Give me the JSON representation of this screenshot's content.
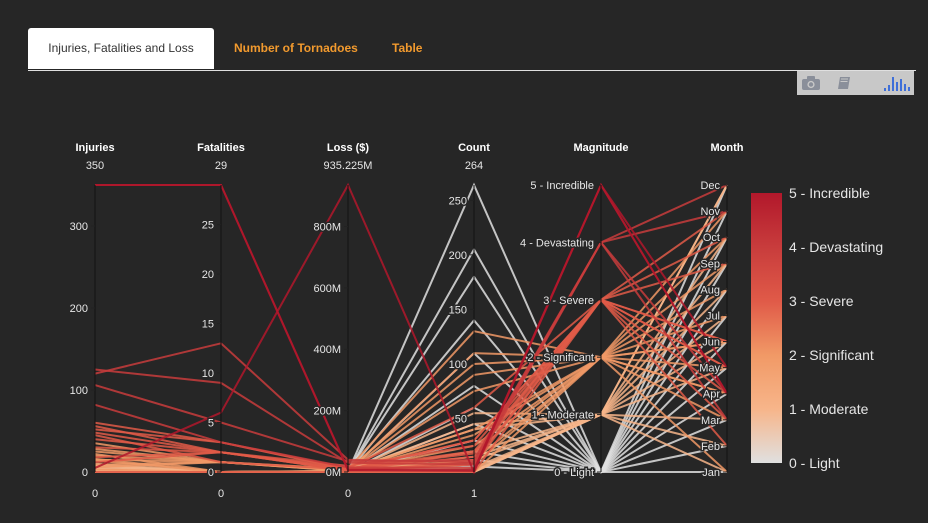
{
  "tabs": [
    {
      "label": "Injuries, Fatalities and Loss"
    },
    {
      "label": "Number of Tornadoes"
    },
    {
      "label": "Table"
    }
  ],
  "modebar": {
    "icons": [
      "camera-icon",
      "book-icon",
      "bar-chart-logo-icon"
    ]
  },
  "chart_data": {
    "type": "parallel_coordinates",
    "colorscale": [
      "#e0e0e0",
      "#f7b58a",
      "#f19966",
      "#e05a48",
      "#c83c3c",
      "#b2182b"
    ],
    "colorbar": {
      "tick_labels": [
        "0 - Light",
        "1 - Moderate",
        "2 - Significant",
        "3 - Severe",
        "4 - Devastating",
        "5 - Incredible"
      ],
      "range": [
        0,
        5
      ]
    },
    "dimensions": [
      {
        "label": "Injuries",
        "max_label": "350",
        "min_label": "0",
        "range": [
          0,
          350
        ],
        "ticks": [
          {
            "v": 0,
            "t": "0"
          },
          {
            "v": 100,
            "t": "100"
          },
          {
            "v": 200,
            "t": "200"
          },
          {
            "v": 300,
            "t": "300"
          }
        ]
      },
      {
        "label": "Fatalities",
        "max_label": "29",
        "min_label": "0",
        "range": [
          0,
          29
        ],
        "ticks": [
          {
            "v": 0,
            "t": "0"
          },
          {
            "v": 5,
            "t": "5"
          },
          {
            "v": 10,
            "t": "10"
          },
          {
            "v": 15,
            "t": "15"
          },
          {
            "v": 20,
            "t": "20"
          },
          {
            "v": 25,
            "t": "25"
          }
        ]
      },
      {
        "label": "Loss ($)",
        "max_label": "935.225M",
        "min_label": "0",
        "range": [
          0,
          935.225
        ],
        "ticks": [
          {
            "v": 0,
            "t": "0M"
          },
          {
            "v": 200,
            "t": "200M"
          },
          {
            "v": 400,
            "t": "400M"
          },
          {
            "v": 600,
            "t": "600M"
          },
          {
            "v": 800,
            "t": "800M"
          }
        ]
      },
      {
        "label": "Count",
        "max_label": "264",
        "min_label": "1",
        "range": [
          1,
          264
        ],
        "ticks": [
          {
            "v": 50,
            "t": "50"
          },
          {
            "v": 100,
            "t": "100"
          },
          {
            "v": 150,
            "t": "150"
          },
          {
            "v": 200,
            "t": "200"
          },
          {
            "v": 250,
            "t": "250"
          }
        ]
      },
      {
        "label": "Magnitude",
        "max_label": "",
        "min_label": "",
        "range": [
          0,
          5
        ],
        "ticks": [
          {
            "v": 0,
            "t": "0 - Light"
          },
          {
            "v": 1,
            "t": "1 - Moderate"
          },
          {
            "v": 2,
            "t": "2 - Significant"
          },
          {
            "v": 3,
            "t": "3 - Severe"
          },
          {
            "v": 4,
            "t": "4 - Devastating"
          },
          {
            "v": 5,
            "t": "5 - Incredible"
          }
        ]
      },
      {
        "label": "Month",
        "max_label": "",
        "min_label": "",
        "range": [
          1,
          12
        ],
        "ticks": [
          {
            "v": 1,
            "t": "Jan"
          },
          {
            "v": 2,
            "t": "Feb"
          },
          {
            "v": 3,
            "t": "Mar"
          },
          {
            "v": 4,
            "t": "Apr"
          },
          {
            "v": 5,
            "t": "May"
          },
          {
            "v": 6,
            "t": "Jun"
          },
          {
            "v": 7,
            "t": "Jul"
          },
          {
            "v": 8,
            "t": "Aug"
          },
          {
            "v": 9,
            "t": "Sep"
          },
          {
            "v": 10,
            "t": "Oct"
          },
          {
            "v": 11,
            "t": "Nov"
          },
          {
            "v": 12,
            "t": "Dec"
          }
        ]
      }
    ],
    "lines": [
      [
        350,
        29,
        8,
        3,
        5,
        4
      ],
      [
        350,
        29,
        6,
        2,
        5,
        5
      ],
      [
        5,
        6,
        935.2,
        1,
        5,
        4
      ],
      [
        120,
        13,
        40,
        10,
        4,
        3
      ],
      [
        125,
        9,
        30,
        8,
        4,
        12
      ],
      [
        106,
        5,
        35,
        12,
        4,
        4
      ],
      [
        82,
        3,
        15,
        5,
        4,
        11
      ],
      [
        60,
        3,
        8,
        30,
        3,
        6
      ],
      [
        56,
        2,
        20,
        25,
        3,
        5
      ],
      [
        52,
        3,
        12,
        20,
        3,
        10
      ],
      [
        48,
        2,
        10,
        18,
        3,
        4
      ],
      [
        45,
        1,
        8,
        15,
        3,
        3
      ],
      [
        40,
        2,
        5,
        10,
        3,
        6
      ],
      [
        35,
        1,
        6,
        40,
        2,
        7
      ],
      [
        30,
        2,
        12,
        60,
        3,
        5
      ],
      [
        28,
        1,
        4,
        12,
        2,
        9
      ],
      [
        25,
        1,
        3,
        90,
        2,
        5
      ],
      [
        22,
        0,
        2,
        110,
        2,
        6
      ],
      [
        20,
        1,
        10,
        130,
        2,
        4
      ],
      [
        18,
        2,
        5,
        8,
        3,
        11
      ],
      [
        16,
        0,
        3,
        75,
        2,
        8
      ],
      [
        15,
        1,
        8,
        100,
        2,
        6
      ],
      [
        14,
        0,
        2,
        20,
        2,
        1
      ],
      [
        12,
        2,
        6,
        30,
        3,
        2
      ],
      [
        10,
        0,
        4,
        40,
        1,
        3
      ],
      [
        9,
        1,
        5,
        25,
        2,
        10
      ],
      [
        8,
        0,
        3,
        15,
        1,
        5
      ],
      [
        7,
        0,
        2,
        45,
        1,
        7
      ],
      [
        6,
        1,
        3,
        35,
        2,
        4
      ],
      [
        5,
        0,
        2,
        20,
        1,
        9
      ],
      [
        4,
        0,
        1,
        55,
        1,
        6
      ],
      [
        3,
        0,
        1,
        8,
        2,
        11
      ],
      [
        2,
        0,
        1,
        12,
        1,
        12
      ],
      [
        1,
        0,
        0.5,
        5,
        1,
        8
      ],
      [
        0,
        0,
        0.2,
        264,
        0,
        5
      ],
      [
        0,
        0,
        0.3,
        205,
        0,
        6
      ],
      [
        0,
        0,
        0.2,
        180,
        0,
        4
      ],
      [
        0,
        0,
        0.1,
        140,
        0,
        7
      ],
      [
        0,
        0,
        0.1,
        110,
        0,
        3
      ],
      [
        0,
        0,
        0.1,
        80,
        0,
        8
      ],
      [
        0,
        0,
        0.1,
        60,
        0,
        2
      ],
      [
        0,
        0,
        0.05,
        45,
        0,
        9
      ],
      [
        0,
        0,
        0.05,
        30,
        0,
        10
      ],
      [
        0,
        0,
        0.02,
        20,
        0,
        1
      ],
      [
        0,
        0,
        0.02,
        12,
        0,
        11
      ],
      [
        0,
        0,
        0.01,
        6,
        0,
        12
      ],
      [
        0,
        0,
        1,
        3,
        1,
        2
      ],
      [
        0,
        0,
        0.5,
        2,
        1,
        1
      ],
      [
        0,
        0,
        0.2,
        1,
        1,
        12
      ],
      [
        0,
        0,
        0.1,
        1,
        2,
        3
      ],
      [
        0,
        0,
        0.1,
        1,
        3,
        9
      ],
      [
        0,
        0,
        0.05,
        1,
        1,
        10
      ]
    ]
  }
}
